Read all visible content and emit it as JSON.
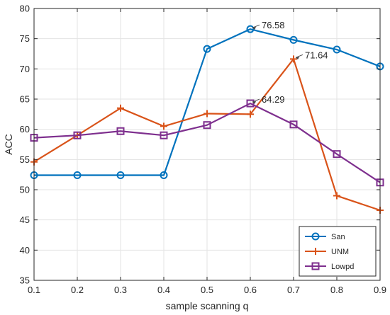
{
  "chart_data": {
    "type": "line",
    "xlabel": "sample scanning q",
    "ylabel": "ACC",
    "xlim": [
      0.1,
      0.9
    ],
    "ylim": [
      35,
      80
    ],
    "xticks": [
      0.1,
      0.2,
      0.3,
      0.4,
      0.5,
      0.6,
      0.7,
      0.8,
      0.9
    ],
    "xtick_labels": [
      "0.1",
      "0.2",
      "0.3",
      "0.4",
      "0.5",
      "0.6",
      "0.7",
      "0.8",
      "0.9"
    ],
    "yticks": [
      35,
      40,
      45,
      50,
      55,
      60,
      65,
      70,
      75,
      80
    ],
    "ytick_labels": [
      "35",
      "40",
      "45",
      "50",
      "55",
      "60",
      "65",
      "70",
      "75",
      "80"
    ],
    "grid": true,
    "legend_position": "bottom-right",
    "x": [
      0.1,
      0.2,
      0.3,
      0.4,
      0.5,
      0.6,
      0.7,
      0.8,
      0.9
    ],
    "series": [
      {
        "name": "San",
        "color": "#0072BD",
        "marker": "circle",
        "values": [
          52.4,
          52.4,
          52.4,
          52.4,
          73.3,
          76.58,
          74.8,
          73.2,
          70.4
        ]
      },
      {
        "name": "UNM",
        "color": "#D95319",
        "marker": "plus",
        "values": [
          54.6,
          59.0,
          63.5,
          60.5,
          62.6,
          62.5,
          71.64,
          49.0,
          46.6
        ]
      },
      {
        "name": "Lowpd",
        "color": "#7E2F8E",
        "marker": "square",
        "values": [
          58.6,
          59.0,
          59.7,
          59.0,
          60.7,
          64.29,
          60.8,
          55.9,
          51.2
        ]
      }
    ],
    "annotations": [
      {
        "text": "76.58",
        "x": 0.6,
        "y": 76.58
      },
      {
        "text": "71.64",
        "x": 0.7,
        "y": 71.64
      },
      {
        "text": "64.29",
        "x": 0.6,
        "y": 64.29
      }
    ]
  }
}
